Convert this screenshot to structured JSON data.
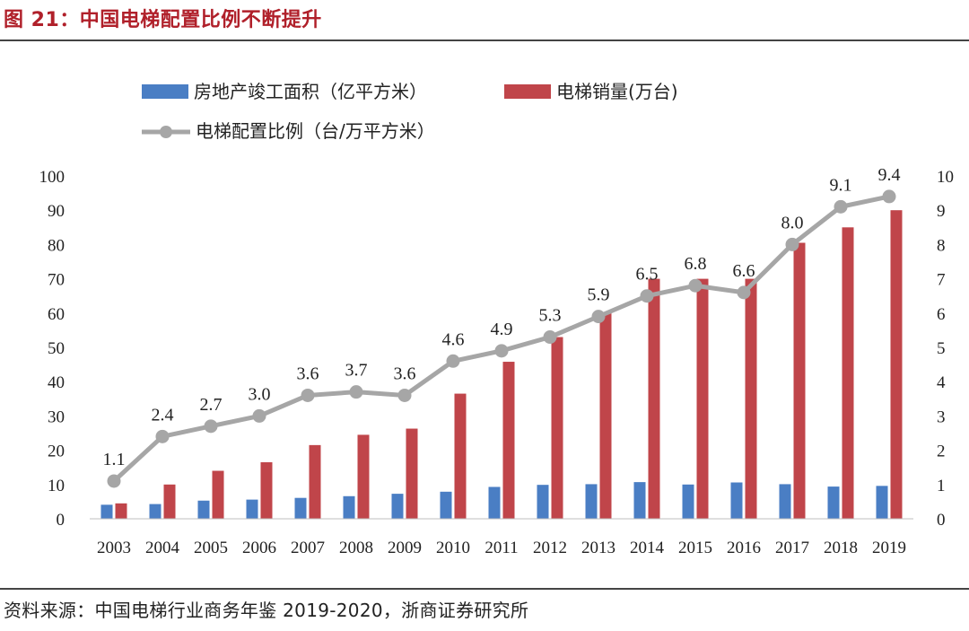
{
  "figure": {
    "title": "图 21：中国电梯配置比例不断提升",
    "source": "资料来源：中国电梯行业商务年鉴 2019-2020，浙商证券研究所"
  },
  "chart_data": {
    "type": "bar",
    "categories": [
      "2003",
      "2004",
      "2005",
      "2006",
      "2007",
      "2008",
      "2009",
      "2010",
      "2011",
      "2012",
      "2013",
      "2014",
      "2015",
      "2016",
      "2017",
      "2018",
      "2019"
    ],
    "series": [
      {
        "name": "房地产竣工面积（亿平方米）",
        "type": "bar",
        "axis": "left",
        "color": "#4a7ec4",
        "values": [
          4.1,
          4.3,
          5.3,
          5.6,
          6.1,
          6.6,
          7.3,
          7.9,
          9.3,
          9.9,
          10.1,
          10.7,
          10.0,
          10.6,
          10.1,
          9.4,
          9.6
        ]
      },
      {
        "name": "电梯销量(万台)",
        "type": "bar",
        "axis": "left",
        "color": "#c0454a",
        "values": [
          4.5,
          10.0,
          14.0,
          16.5,
          21.5,
          24.5,
          26.3,
          36.5,
          45.8,
          53.0,
          60.0,
          70.0,
          70.0,
          70.0,
          80.5,
          85.0,
          90.0
        ]
      },
      {
        "name": "电梯配置比例（台/万平方米）",
        "type": "line",
        "axis": "right",
        "color": "#a6a6a6",
        "values": [
          1.1,
          2.4,
          2.7,
          3.0,
          3.6,
          3.7,
          3.6,
          4.6,
          4.9,
          5.3,
          5.9,
          6.5,
          6.8,
          6.6,
          8.0,
          9.1,
          9.4
        ],
        "labels": [
          "1.1",
          "2.4",
          "2.7",
          "3.0",
          "3.6",
          "3.7",
          "3.6",
          "4.6",
          "4.9",
          "5.3",
          "5.9",
          "6.5",
          "6.8",
          "6.6",
          "8.0",
          "9.1",
          "9.4"
        ]
      }
    ],
    "y_left": {
      "min": 0,
      "max": 100,
      "ticks": [
        "0",
        "10",
        "20",
        "30",
        "40",
        "50",
        "60",
        "70",
        "80",
        "90",
        "100"
      ]
    },
    "y_right": {
      "min": 0,
      "max": 10,
      "ticks": [
        "0",
        "1",
        "2",
        "3",
        "4",
        "5",
        "6",
        "7",
        "8",
        "9",
        "10"
      ]
    },
    "grid": false,
    "legend_position": "top-center"
  }
}
